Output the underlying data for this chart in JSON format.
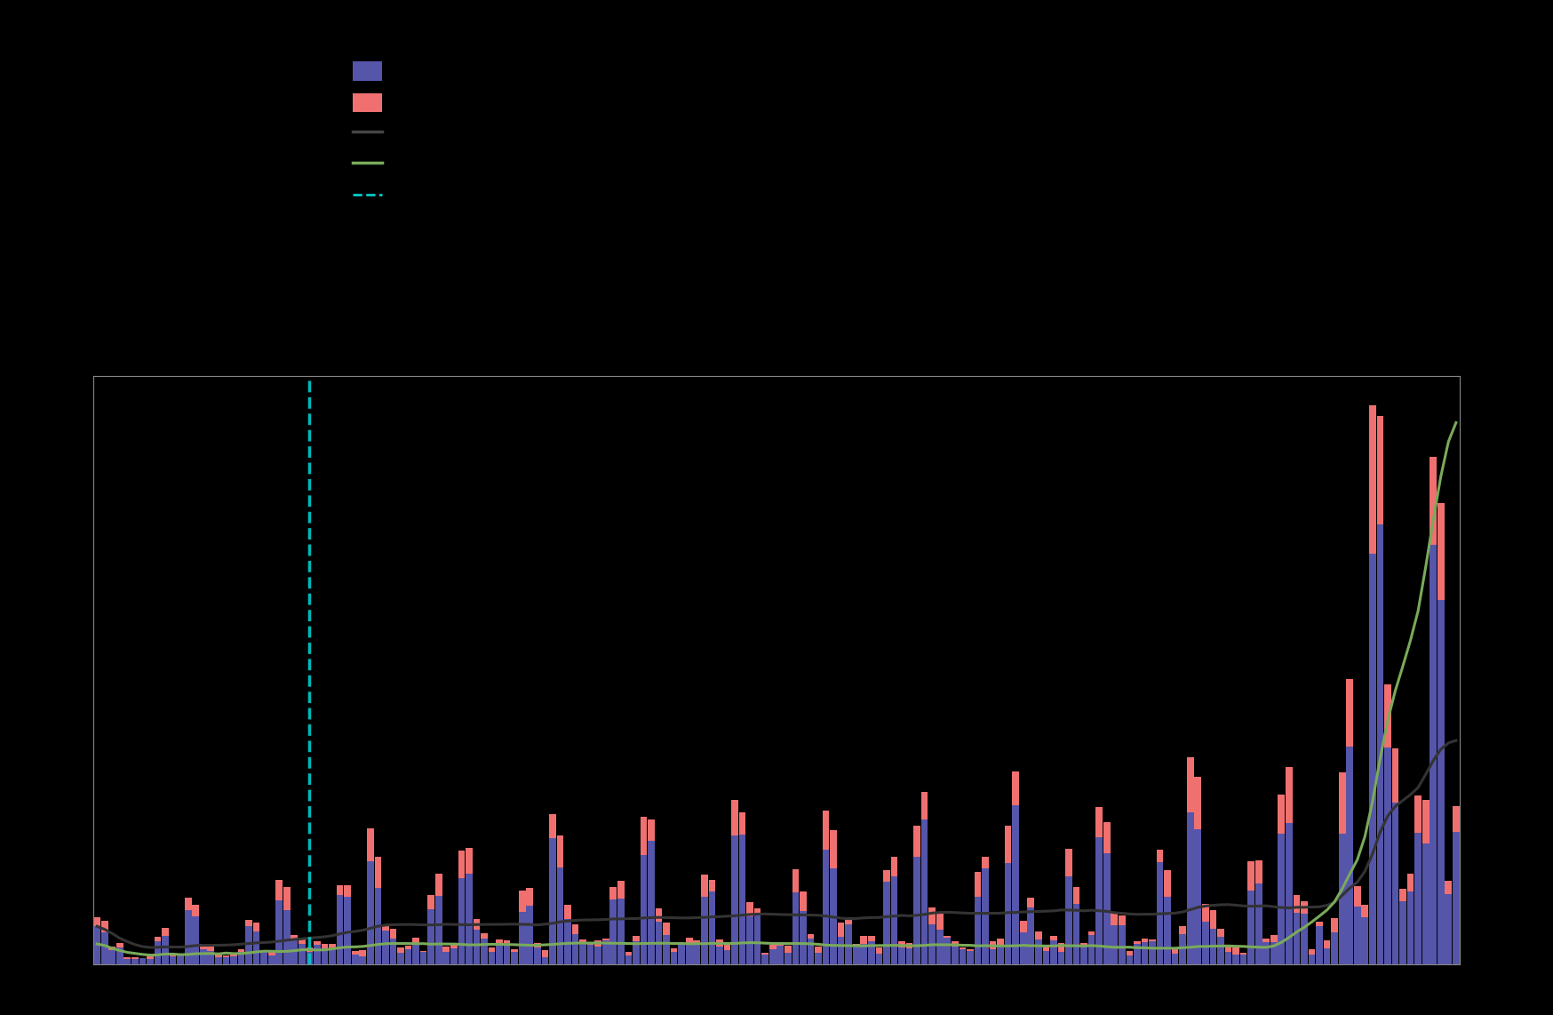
{
  "background_color": "#000000",
  "plot_bg_color": "#000000",
  "bar_color_blue": "#5555aa",
  "bar_color_pink": "#f07070",
  "line_color_gray": "#444444",
  "line_color_green": "#7aaa5a",
  "dashed_line_color": "#00cccc",
  "border_color": "#888888",
  "n_months": 180,
  "vline_month": 28,
  "ylim_max": 9.0,
  "figsize": [
    17.48,
    11.42
  ],
  "dpi": 100
}
